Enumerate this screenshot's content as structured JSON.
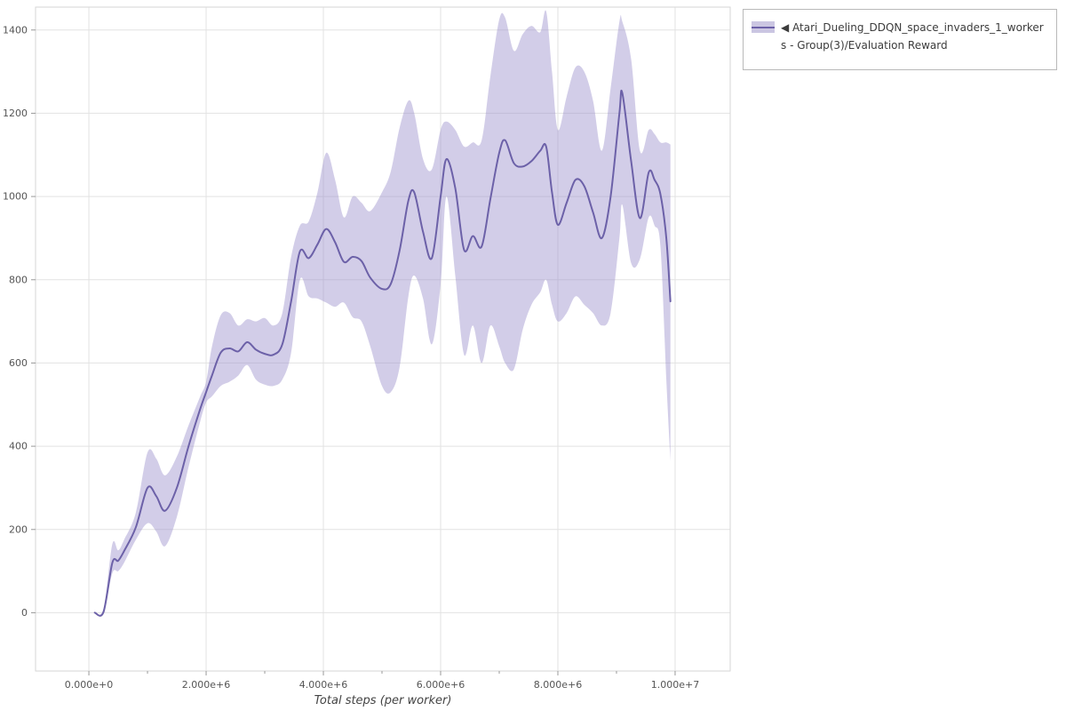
{
  "chart_data": {
    "type": "line",
    "title": "",
    "xlabel": "Total steps (per worker)",
    "ylabel": "",
    "grid": true,
    "legend_position": "top-right-outside",
    "xlim": [
      -910000,
      10940000
    ],
    "ylim": [
      -140,
      1455
    ],
    "x_ticks": {
      "values": [
        0,
        2000000,
        4000000,
        6000000,
        8000000,
        10000000
      ],
      "labels": [
        "0.000e+0",
        "2.000e+6",
        "4.000e+6",
        "6.000e+6",
        "8.000e+6",
        "1.000e+7"
      ]
    },
    "x_minor_ticks": [
      1000000,
      3000000,
      5000000,
      7000000,
      9000000
    ],
    "y_ticks": {
      "values": [
        0,
        200,
        400,
        600,
        800,
        1000,
        1200,
        1400
      ],
      "labels": [
        "0",
        "200",
        "400",
        "600",
        "800",
        "1000",
        "1200",
        "1400"
      ]
    },
    "colors": {
      "line": "#6c61a8",
      "band": "#9c90cc",
      "grid": "#e2e2e2",
      "border": "#d6d6d6",
      "tick": "#999999",
      "tick_text": "#555555"
    },
    "series": [
      {
        "name": "◀ Atari_Dueling_DDQN_space_invaders_1_workers - Group(3)/Evaluation Reward",
        "color": "#6c61a8",
        "band_color": "#9c90cc",
        "x": [
          100000,
          250000,
          400000,
          500000,
          600000,
          800000,
          1000000,
          1150000,
          1300000,
          1500000,
          1700000,
          1900000,
          2000000,
          2100000,
          2250000,
          2400000,
          2550000,
          2700000,
          2850000,
          3000000,
          3150000,
          3300000,
          3450000,
          3600000,
          3750000,
          3900000,
          4050000,
          4200000,
          4350000,
          4500000,
          4650000,
          4800000,
          5000000,
          5150000,
          5300000,
          5450000,
          5550000,
          5700000,
          5850000,
          6000000,
          6100000,
          6250000,
          6400000,
          6550000,
          6700000,
          6850000,
          7000000,
          7100000,
          7250000,
          7400000,
          7550000,
          7700000,
          7800000,
          7900000,
          8000000,
          8150000,
          8300000,
          8450000,
          8600000,
          8750000,
          8900000,
          9050000,
          9100000,
          9250000,
          9400000,
          9550000,
          9650000,
          9750000,
          9850000,
          9920000
        ],
        "mean": [
          0,
          2,
          120,
          125,
          148,
          205,
          300,
          280,
          245,
          300,
          400,
          490,
          530,
          570,
          625,
          635,
          628,
          650,
          632,
          622,
          620,
          645,
          748,
          868,
          852,
          885,
          922,
          890,
          843,
          855,
          845,
          805,
          778,
          790,
          870,
          990,
          1010,
          915,
          852,
          1000,
          1090,
          1020,
          872,
          905,
          880,
          995,
          1105,
          1135,
          1080,
          1072,
          1085,
          1110,
          1120,
          1010,
          932,
          985,
          1040,
          1025,
          962,
          900,
          1000,
          1200,
          1248,
          1085,
          948,
          1058,
          1040,
          1005,
          900,
          748
        ],
        "band_low": [
          0,
          0,
          95,
          100,
          120,
          175,
          215,
          195,
          160,
          230,
          350,
          460,
          505,
          520,
          545,
          555,
          570,
          595,
          560,
          548,
          545,
          560,
          625,
          800,
          760,
          755,
          745,
          735,
          745,
          710,
          700,
          640,
          545,
          530,
          590,
          760,
          810,
          755,
          645,
          790,
          1000,
          810,
          620,
          690,
          600,
          690,
          640,
          600,
          585,
          680,
          740,
          770,
          800,
          740,
          700,
          720,
          760,
          740,
          720,
          690,
          720,
          900,
          980,
          840,
          850,
          950,
          930,
          880,
          560,
          365
        ],
        "band_high": [
          0,
          10,
          165,
          150,
          175,
          240,
          385,
          370,
          330,
          375,
          450,
          520,
          555,
          640,
          715,
          720,
          690,
          705,
          700,
          708,
          690,
          720,
          855,
          930,
          940,
          1010,
          1105,
          1040,
          950,
          1000,
          985,
          965,
          1010,
          1060,
          1165,
          1230,
          1200,
          1090,
          1065,
          1160,
          1180,
          1160,
          1120,
          1130,
          1135,
          1290,
          1425,
          1430,
          1350,
          1390,
          1410,
          1395,
          1445,
          1300,
          1160,
          1240,
          1310,
          1300,
          1230,
          1110,
          1260,
          1420,
          1420,
          1330,
          1110,
          1160,
          1150,
          1130,
          1130,
          1125
        ]
      }
    ]
  }
}
